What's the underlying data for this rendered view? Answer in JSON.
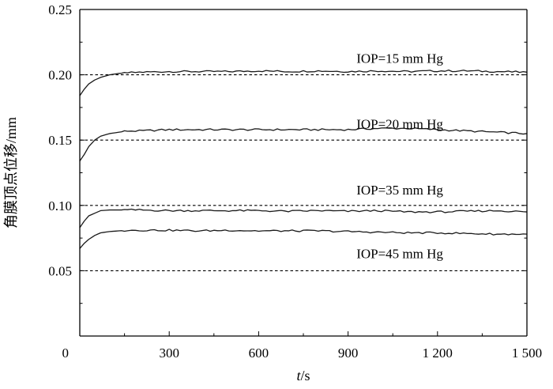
{
  "chart_data": {
    "type": "line",
    "title": "",
    "xlabel": "t/s",
    "xlabel_italic": "t",
    "xlabel_unit": "/s",
    "ylabel": "角膜顶点位移/mm",
    "xlim": [
      0,
      1500
    ],
    "ylim": [
      0,
      0.25
    ],
    "xticks": [
      0,
      300,
      600,
      900,
      1200,
      1500
    ],
    "xtick_labels": [
      "0",
      "300",
      "600",
      "900",
      "1 200",
      "1 500"
    ],
    "yticks": [
      0.05,
      0.1,
      0.15,
      0.2,
      0.25
    ],
    "ytick_labels": [
      "0.05",
      "0.10",
      "0.15",
      "0.20",
      "0.25"
    ],
    "grid": false,
    "reference_lines": [
      {
        "y": 0.2,
        "style": "dashed"
      },
      {
        "y": 0.15,
        "style": "dashed"
      },
      {
        "y": 0.1,
        "style": "dashed"
      },
      {
        "y": 0.05,
        "style": "dashed"
      }
    ],
    "annotations": [
      {
        "text": "IOP=15 mm Hg",
        "x": 1100,
        "y": 0.209
      },
      {
        "text": "IOP=20 mm Hg",
        "x": 1100,
        "y": 0.159
      },
      {
        "text": "IOP=35 mm Hg",
        "x": 1100,
        "y": 0.1085
      },
      {
        "text": "IOP=45 mm Hg",
        "x": 1100,
        "y": 0.0595
      }
    ],
    "series": [
      {
        "x": [
          0,
          15,
          30,
          50,
          70,
          100,
          130,
          160,
          200,
          300,
          400,
          500,
          600,
          700,
          800,
          900,
          1000,
          1100,
          1200,
          1300,
          1400,
          1500
        ],
        "values": [
          0.184,
          0.189,
          0.193,
          0.196,
          0.198,
          0.2,
          0.201,
          0.2015,
          0.202,
          0.2025,
          0.2025,
          0.2025,
          0.203,
          0.2025,
          0.203,
          0.2025,
          0.203,
          0.2025,
          0.203,
          0.203,
          0.2025,
          0.202
        ]
      },
      {
        "x": [
          0,
          15,
          30,
          50,
          70,
          100,
          130,
          160,
          200,
          300,
          400,
          500,
          600,
          700,
          800,
          900,
          1000,
          1100,
          1200,
          1300,
          1400,
          1500
        ],
        "values": [
          0.134,
          0.139,
          0.145,
          0.15,
          0.153,
          0.155,
          0.156,
          0.157,
          0.157,
          0.158,
          0.158,
          0.158,
          0.158,
          0.158,
          0.158,
          0.158,
          0.159,
          0.159,
          0.158,
          0.157,
          0.156,
          0.155
        ]
      },
      {
        "x": [
          0,
          15,
          30,
          50,
          70,
          100,
          130,
          160,
          200,
          300,
          400,
          500,
          600,
          700,
          800,
          900,
          1000,
          1100,
          1200,
          1300,
          1400,
          1500
        ],
        "values": [
          0.083,
          0.088,
          0.092,
          0.094,
          0.096,
          0.0965,
          0.0965,
          0.0965,
          0.0965,
          0.096,
          0.096,
          0.096,
          0.096,
          0.0955,
          0.096,
          0.0955,
          0.096,
          0.095,
          0.095,
          0.0955,
          0.096,
          0.095
        ]
      },
      {
        "x": [
          0,
          15,
          30,
          50,
          70,
          100,
          130,
          160,
          200,
          300,
          400,
          500,
          600,
          700,
          800,
          900,
          1000,
          1100,
          1200,
          1300,
          1400,
          1500
        ],
        "values": [
          0.067,
          0.071,
          0.074,
          0.077,
          0.079,
          0.08,
          0.0805,
          0.081,
          0.081,
          0.081,
          0.0805,
          0.081,
          0.0805,
          0.0805,
          0.0805,
          0.08,
          0.0795,
          0.079,
          0.079,
          0.0785,
          0.078,
          0.078
        ]
      }
    ]
  }
}
